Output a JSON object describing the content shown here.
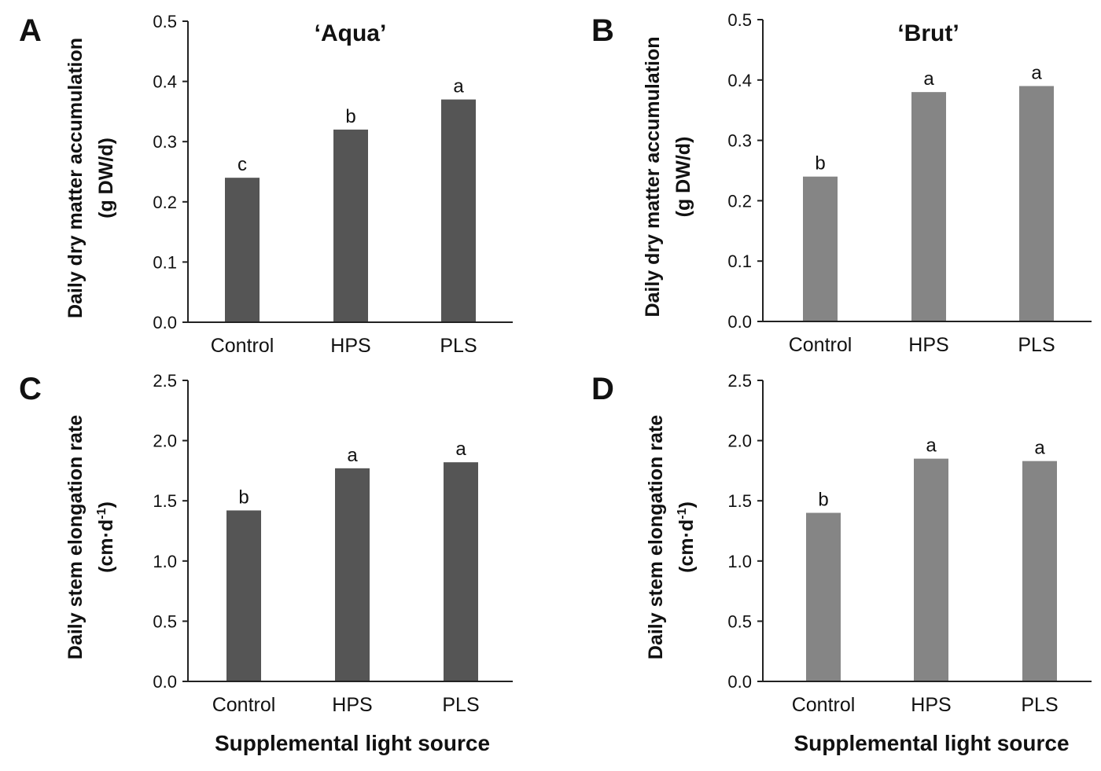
{
  "chart_data": [
    {
      "panel": "A",
      "type": "bar",
      "title": "‘Aqua’",
      "categories": [
        "Control",
        "HPS",
        "PLS"
      ],
      "values": [
        0.24,
        0.32,
        0.37
      ],
      "significance": [
        "c",
        "b",
        "a"
      ],
      "ylabel_line1": "Daily dry matter accumulation",
      "ylabel_line2": "(g DW/d)",
      "xlabel": "",
      "ylim": [
        0,
        0.5
      ],
      "yticks": [
        "0.0",
        "0.1",
        "0.2",
        "0.3",
        "0.4",
        "0.5"
      ],
      "bar_color": "#555555",
      "grid": false
    },
    {
      "panel": "B",
      "type": "bar",
      "title": "‘Brut’",
      "categories": [
        "Control",
        "HPS",
        "PLS"
      ],
      "values": [
        0.24,
        0.38,
        0.39
      ],
      "significance": [
        "b",
        "a",
        "a"
      ],
      "ylabel_line1": "Daily dry matter accumulation",
      "ylabel_line2": "(g DW/d)",
      "xlabel": "",
      "ylim": [
        0,
        0.5
      ],
      "yticks": [
        "0.0",
        "0.1",
        "0.2",
        "0.3",
        "0.4",
        "0.5"
      ],
      "bar_color": "#858585",
      "grid": false
    },
    {
      "panel": "C",
      "type": "bar",
      "title": "",
      "categories": [
        "Control",
        "HPS",
        "PLS"
      ],
      "values": [
        1.42,
        1.77,
        1.82
      ],
      "significance": [
        "b",
        "a",
        "a"
      ],
      "ylabel_line1": "Daily stem elongation rate",
      "ylabel_line2": "(cm·d",
      "ylabel_sup": "-1",
      "ylabel_tail": ")",
      "xlabel": "Supplemental light source",
      "ylim": [
        0,
        2.5
      ],
      "yticks": [
        "0.0",
        "0.5",
        "1.0",
        "1.5",
        "2.0",
        "2.5"
      ],
      "bar_color": "#555555",
      "grid": false
    },
    {
      "panel": "D",
      "type": "bar",
      "title": "",
      "categories": [
        "Control",
        "HPS",
        "PLS"
      ],
      "values": [
        1.4,
        1.85,
        1.83
      ],
      "significance": [
        "b",
        "a",
        "a"
      ],
      "ylabel_line1": "Daily stem elongation rate",
      "ylabel_line2": "(cm·d",
      "ylabel_sup": "-1",
      "ylabel_tail": ")",
      "xlabel": "Supplemental light source",
      "ylim": [
        0,
        2.5
      ],
      "yticks": [
        "0.0",
        "0.5",
        "1.0",
        "1.5",
        "2.0",
        "2.5"
      ],
      "bar_color": "#858585",
      "grid": false
    }
  ]
}
